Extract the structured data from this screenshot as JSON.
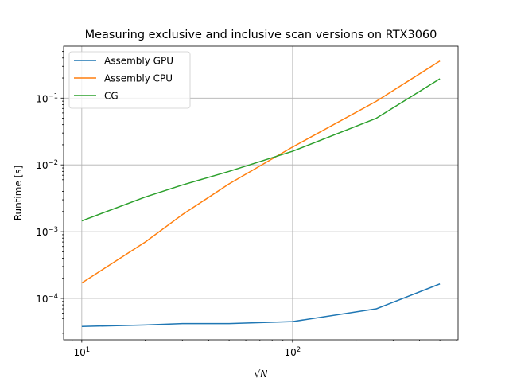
{
  "chart_data": {
    "type": "line",
    "title": "Measuring exclusive and inclusive scan versions on RTX3060",
    "xlabel": "√N",
    "ylabel": "Runtime [s]",
    "xscale": "log",
    "yscale": "log",
    "xlim": [
      8.2,
      610
    ],
    "ylim": [
      2.4e-05,
      0.6
    ],
    "grid": true,
    "legend": "top-left",
    "x_major_ticks": [
      {
        "value": 10,
        "base": "10",
        "exp": "1"
      },
      {
        "value": 100,
        "base": "10",
        "exp": "2"
      }
    ],
    "y_major_ticks": [
      {
        "value": 0.0001,
        "base": "10",
        "exp": "−4"
      },
      {
        "value": 0.001,
        "base": "10",
        "exp": "−3"
      },
      {
        "value": 0.01,
        "base": "10",
        "exp": "−2"
      },
      {
        "value": 0.1,
        "base": "10",
        "exp": "−1"
      }
    ],
    "series": [
      {
        "name": "Assembly GPU",
        "color": "#1f77b4",
        "x": [
          10,
          20,
          30,
          50,
          100,
          250,
          500
        ],
        "y": [
          3.8e-05,
          4e-05,
          4.2e-05,
          4.2e-05,
          4.5e-05,
          7e-05,
          0.000165
        ]
      },
      {
        "name": "Assembly CPU",
        "color": "#ff7f0e",
        "x": [
          10,
          20,
          30,
          50,
          100,
          250,
          500
        ],
        "y": [
          0.00017,
          0.0007,
          0.0018,
          0.0052,
          0.0185,
          0.09,
          0.36
        ]
      },
      {
        "name": "CG",
        "color": "#2ca02c",
        "x": [
          10,
          20,
          30,
          50,
          100,
          250,
          500
        ],
        "y": [
          0.00145,
          0.0033,
          0.005,
          0.008,
          0.016,
          0.05,
          0.195
        ]
      }
    ]
  }
}
